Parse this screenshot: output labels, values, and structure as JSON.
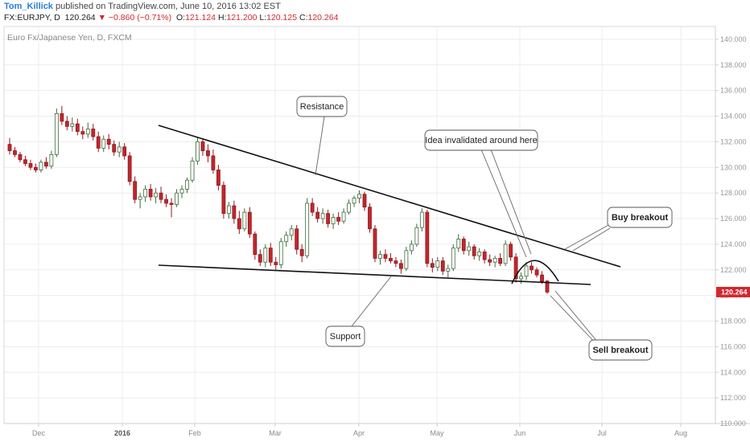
{
  "header": {
    "author": "Tom_Killick",
    "published": "published on TradingView.com, June 10, 2016 13:02 EST",
    "symbol": "FX:EURJPY, D",
    "price": "120.264",
    "change_arrow": "▼",
    "change": "−0.860 (−0.71%)",
    "o_label": "O:",
    "o_value": "121.124",
    "h_label": "H:",
    "h_value": "121.200",
    "l_label": "L:",
    "l_value": "120.125",
    "c_label": "C:",
    "c_value": "120.264"
  },
  "colors": {
    "up": "#ffffff",
    "up_border": "#3d6b3d",
    "down": "#c1272d",
    "down_border": "#8e1b1f",
    "last_price": "#d2272f",
    "grid": "#ececec",
    "axis": "#cfcfcf",
    "line": "#111111"
  },
  "chart_data": {
    "type": "candlestick",
    "title": "Euro Fx/Japanese Yen, D, FXCM",
    "ylim": [
      110,
      141
    ],
    "y_ticks": [
      "140.000",
      "138.000",
      "136.000",
      "134.000",
      "132.000",
      "130.000",
      "128.000",
      "126.000",
      "124.000",
      "122.000",
      "120.000",
      "118.000",
      "116.000",
      "114.000",
      "112.000",
      "110.000"
    ],
    "x_ticks": [
      "Dec",
      "2016",
      "Feb",
      "Mar",
      "Apr",
      "May",
      "Jun",
      "Jul",
      "Aug"
    ],
    "last_price": "120.264",
    "candles": [
      [
        131.8,
        132.3,
        131.0,
        131.3
      ],
      [
        131.3,
        131.6,
        130.8,
        131.0
      ],
      [
        131.0,
        131.2,
        130.4,
        130.6
      ],
      [
        130.6,
        130.9,
        130.1,
        130.3
      ],
      [
        130.3,
        130.6,
        129.8,
        130.0
      ],
      [
        130.0,
        130.3,
        129.6,
        129.8
      ],
      [
        129.8,
        130.6,
        129.6,
        130.4
      ],
      [
        130.4,
        130.8,
        129.9,
        130.1
      ],
      [
        130.1,
        131.3,
        129.9,
        131.0
      ],
      [
        131.0,
        134.6,
        130.8,
        134.2
      ],
      [
        134.2,
        134.8,
        133.3,
        133.6
      ],
      [
        133.6,
        134.0,
        132.9,
        133.2
      ],
      [
        133.2,
        133.9,
        132.8,
        133.4
      ],
      [
        133.4,
        133.8,
        132.5,
        132.8
      ],
      [
        132.8,
        133.2,
        132.2,
        132.6
      ],
      [
        132.6,
        133.5,
        132.3,
        133.0
      ],
      [
        133.0,
        133.4,
        132.1,
        132.4
      ],
      [
        132.4,
        132.8,
        131.2,
        131.5
      ],
      [
        131.5,
        132.5,
        131.2,
        132.2
      ],
      [
        132.2,
        132.6,
        131.4,
        131.8
      ],
      [
        131.8,
        132.1,
        130.9,
        131.2
      ],
      [
        131.2,
        132.0,
        130.8,
        131.6
      ],
      [
        131.6,
        131.9,
        130.6,
        130.9
      ],
      [
        130.9,
        131.2,
        128.6,
        128.9
      ],
      [
        128.9,
        129.3,
        127.2,
        127.5
      ],
      [
        127.5,
        128.0,
        126.8,
        127.7
      ],
      [
        127.7,
        128.6,
        127.3,
        128.3
      ],
      [
        128.3,
        128.7,
        127.4,
        127.7
      ],
      [
        127.7,
        128.4,
        127.2,
        128.0
      ],
      [
        128.0,
        128.5,
        127.2,
        127.5
      ],
      [
        127.5,
        127.9,
        126.9,
        127.2
      ],
      [
        127.2,
        127.6,
        126.1,
        127.1
      ],
      [
        127.1,
        128.3,
        126.9,
        128.0
      ],
      [
        128.0,
        128.6,
        127.6,
        128.3
      ],
      [
        128.3,
        129.2,
        128.0,
        129.0
      ],
      [
        129.0,
        130.8,
        128.8,
        130.5
      ],
      [
        130.5,
        132.4,
        130.2,
        132.0
      ],
      [
        132.0,
        132.3,
        130.9,
        131.3
      ],
      [
        131.3,
        131.8,
        130.4,
        130.9
      ],
      [
        130.9,
        131.4,
        129.5,
        129.8
      ],
      [
        129.8,
        130.2,
        128.2,
        128.6
      ],
      [
        128.6,
        128.9,
        126.0,
        126.4
      ],
      [
        126.4,
        127.3,
        126.0,
        127.0
      ],
      [
        127.0,
        127.4,
        125.6,
        126.0
      ],
      [
        126.0,
        126.6,
        124.8,
        125.2
      ],
      [
        125.2,
        126.8,
        125.0,
        126.5
      ],
      [
        126.5,
        126.9,
        124.5,
        124.8
      ],
      [
        124.8,
        125.0,
        122.8,
        123.2
      ],
      [
        123.2,
        123.6,
        122.3,
        122.6
      ],
      [
        122.6,
        124.0,
        122.2,
        123.7
      ],
      [
        123.7,
        124.1,
        122.3,
        122.6
      ],
      [
        122.6,
        123.0,
        122.0,
        122.4
      ],
      [
        122.4,
        124.5,
        122.1,
        124.2
      ],
      [
        124.2,
        125.0,
        123.8,
        124.7
      ],
      [
        124.7,
        125.5,
        124.3,
        125.2
      ],
      [
        125.2,
        125.5,
        123.2,
        123.6
      ],
      [
        123.6,
        124.0,
        122.6,
        123.1
      ],
      [
        123.1,
        127.6,
        122.9,
        127.2
      ],
      [
        127.2,
        127.6,
        126.2,
        126.5
      ],
      [
        126.5,
        126.9,
        125.7,
        126.0
      ],
      [
        126.0,
        126.8,
        125.6,
        126.4
      ],
      [
        126.4,
        126.7,
        125.3,
        125.6
      ],
      [
        125.6,
        126.4,
        125.2,
        126.1
      ],
      [
        126.1,
        126.5,
        125.5,
        125.8
      ],
      [
        125.8,
        126.8,
        125.6,
        126.5
      ],
      [
        126.5,
        127.5,
        126.3,
        127.2
      ],
      [
        127.2,
        127.8,
        126.9,
        127.6
      ],
      [
        127.6,
        128.2,
        127.2,
        127.9
      ],
      [
        127.9,
        128.1,
        126.6,
        126.9
      ],
      [
        126.9,
        127.2,
        124.9,
        125.2
      ],
      [
        125.2,
        125.5,
        122.6,
        122.9
      ],
      [
        122.9,
        123.5,
        122.4,
        123.2
      ],
      [
        123.2,
        123.6,
        122.6,
        122.9
      ],
      [
        122.9,
        123.3,
        122.5,
        122.7
      ],
      [
        122.7,
        123.0,
        122.2,
        122.5
      ],
      [
        122.5,
        122.8,
        121.7,
        122.1
      ],
      [
        122.1,
        123.8,
        121.9,
        123.5
      ],
      [
        123.5,
        124.3,
        123.2,
        124.0
      ],
      [
        124.0,
        125.6,
        123.8,
        125.3
      ],
      [
        125.3,
        126.8,
        125.0,
        126.5
      ],
      [
        126.5,
        126.7,
        122.2,
        122.5
      ],
      [
        122.5,
        122.9,
        121.8,
        122.2
      ],
      [
        122.2,
        123.0,
        121.9,
        122.7
      ],
      [
        122.7,
        123.0,
        121.6,
        121.9
      ],
      [
        121.9,
        122.4,
        121.4,
        122.1
      ],
      [
        122.1,
        124.0,
        121.9,
        123.7
      ],
      [
        123.7,
        124.8,
        123.4,
        124.4
      ],
      [
        124.4,
        124.6,
        123.2,
        123.5
      ],
      [
        123.5,
        124.2,
        123.1,
        123.8
      ],
      [
        123.8,
        124.0,
        122.8,
        123.1
      ],
      [
        123.1,
        123.7,
        122.7,
        123.4
      ],
      [
        123.4,
        123.6,
        122.5,
        122.8
      ],
      [
        122.8,
        123.2,
        122.3,
        122.6
      ],
      [
        122.6,
        123.1,
        122.2,
        122.9
      ],
      [
        122.9,
        123.3,
        122.3,
        122.5
      ],
      [
        122.5,
        124.3,
        122.3,
        124.0
      ],
      [
        124.0,
        124.2,
        122.7,
        123.0
      ],
      [
        123.0,
        123.3,
        121.0,
        121.3
      ],
      [
        121.3,
        121.8,
        120.9,
        121.5
      ],
      [
        121.5,
        122.6,
        121.2,
        122.3
      ],
      [
        122.3,
        122.6,
        121.7,
        122.0
      ],
      [
        122.0,
        122.2,
        121.4,
        121.6
      ],
      [
        121.6,
        121.9,
        120.9,
        121.1
      ],
      [
        121.124,
        121.2,
        120.125,
        120.264
      ]
    ],
    "annotations": [
      {
        "text": "Resistance"
      },
      {
        "text": "Idea invalidated around here"
      },
      {
        "text": "Buy breakout"
      },
      {
        "text": "Support"
      },
      {
        "text": "Sell breakout"
      }
    ]
  }
}
